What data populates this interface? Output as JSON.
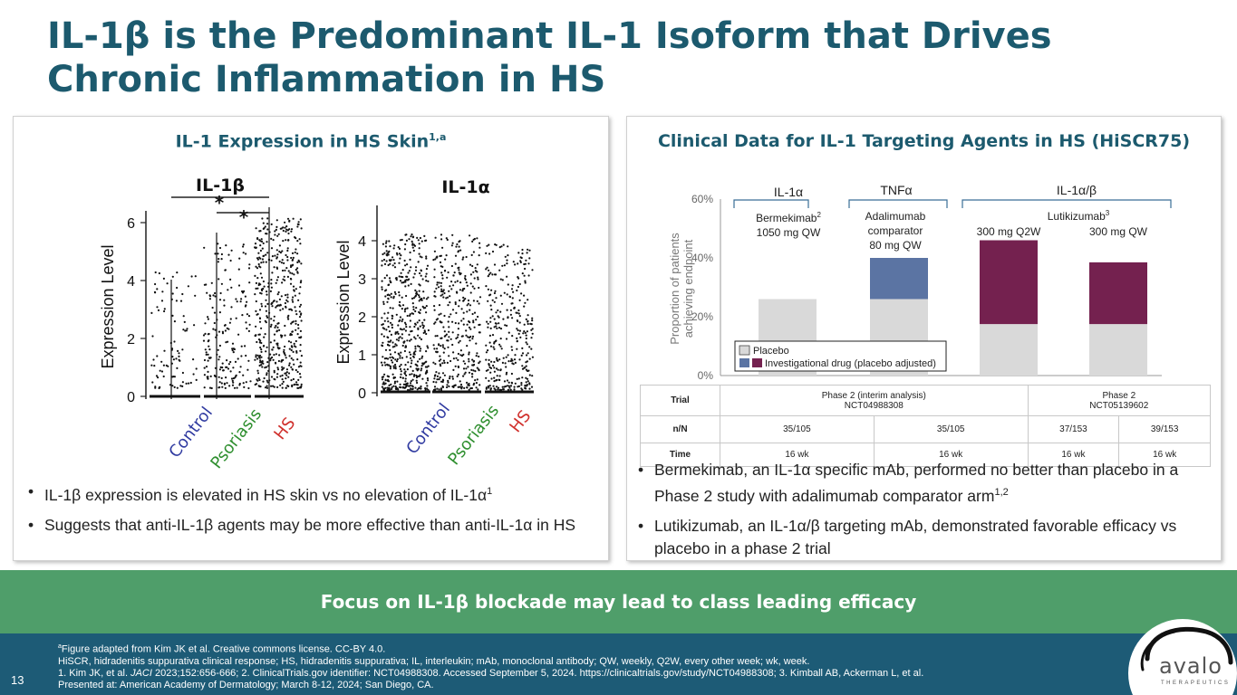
{
  "title": "IL-1β is the Predominant IL-1 Isoform that Drives Chronic Inflammation in HS",
  "left_panel": {
    "heading": "IL-1 Expression in HS Skin",
    "heading_sup": "1,a",
    "plot_il1b": {
      "title": "IL-1β",
      "ylabel": "Expression Level",
      "yticks": [
        "0",
        "2",
        "4",
        "6"
      ],
      "groups": [
        "Control",
        "Psoriasis",
        "HS"
      ],
      "sig_marks": [
        "*",
        "*"
      ]
    },
    "plot_il1a": {
      "title": "IL-1α",
      "ylabel": "Expression Level",
      "yticks": [
        "0",
        "1",
        "2",
        "3",
        "4"
      ],
      "groups": [
        "Control",
        "Psoriasis",
        "HS"
      ]
    },
    "bullets": [
      {
        "text": "IL-1β expression is elevated in HS skin vs no elevation of IL-1α",
        "sup": "1"
      },
      {
        "text": "Suggests that anti-IL-1β agents may be more effective than anti-IL-1α in HS",
        "sup": ""
      }
    ]
  },
  "right_panel": {
    "heading": "Clinical Data for IL-1 Targeting Agents in HS (HiSCR75)",
    "chart_data": {
      "type": "bar",
      "stacked": true,
      "categories": [
        "Bermekimab 1050 mg QW",
        "Adalimumab comparator 80 mg QW",
        "Lutikizumab 300 mg Q2W",
        "Lutikizumab 300 mg QW"
      ],
      "series": [
        {
          "name": "Placebo",
          "values": [
            26,
            26,
            17.5,
            17.5
          ],
          "color": "#d9d9d9"
        },
        {
          "name": "Investigational drug (placebo adjusted)",
          "values": [
            0,
            14,
            28.5,
            21
          ],
          "colors": [
            "#74214f",
            "#5b74a3",
            "#74214f",
            "#74214f"
          ]
        }
      ],
      "ylabel": "Proportion of patients achieving endpoint",
      "yticks": [
        "0%",
        "20%",
        "40%",
        "60%"
      ],
      "ylim": [
        0,
        60
      ],
      "group_labels": [
        "IL-1α",
        "TNFα",
        "IL-1α/β"
      ],
      "drug_labels": {
        "bermekimab": "Bermekimab",
        "bermekimab_sup": "2",
        "bermekimab_dose": "1050 mg QW",
        "adalimumab_lines": [
          "Adalimumab",
          "comparator",
          "80 mg QW"
        ],
        "lutikizumab": "Lutikizumab",
        "lutikizumab_sup": "3",
        "luti_dose_1": "300 mg Q2W",
        "luti_dose_2": "300 mg QW"
      },
      "legend": [
        "Placebo",
        "Investigational drug (placebo adjusted)"
      ]
    },
    "table": {
      "row_labels": [
        "Trial",
        "n/N",
        "Time"
      ],
      "trial_1": [
        "Phase 2 (interim analysis)",
        "NCT04988308"
      ],
      "trial_2": [
        "Phase 2",
        "NCT05139602"
      ],
      "nN": [
        "35/105",
        "35/105",
        "37/153",
        "39/153"
      ],
      "time": [
        "16 wk",
        "16 wk",
        "16 wk",
        "16 wk"
      ]
    },
    "bullets": [
      {
        "text": "Bermekimab, an IL-1α specific mAb, performed no better than placebo in a Phase 2 study with adalimumab comparator arm",
        "sup": "1,2"
      },
      {
        "text": "Lutikizumab, an IL-1α/β targeting mAb, demonstrated favorable efficacy vs placebo in a phase 2 trial",
        "sup": ""
      }
    ]
  },
  "banner": "Focus on IL-1β blockade may lead to class leading efficacy",
  "footnotes": {
    "line1_sup": "a",
    "line1": "Figure adapted from Kim JK et al. Creative commons license. CC-BY 4.0.",
    "line2": "HiSCR, hidradenitis suppurativa clinical response; HS, hidradenitis suppurativa; IL, interleukin; mAb, monoclonal antibody; QW, weekly, Q2W, every other week; wk, week.",
    "line3a": "1. Kim JK, et al. ",
    "line3_journal": "JACI",
    "line3b": " 2023;152:656-666; 2. ClinicalTrials.gov identifier: NCT04988308. Accessed September 5, 2024. https://clinicaltrials.gov/study/NCT04988308; 3. Kimball AB, Ackerman L, et al.",
    "line4": "Presented at: American Academy of Dermatology; March 8-12, 2024; San Diego, CA."
  },
  "page_number": "13",
  "logo": {
    "name": "avalo",
    "subtitle": "THERAPEUTICS"
  }
}
